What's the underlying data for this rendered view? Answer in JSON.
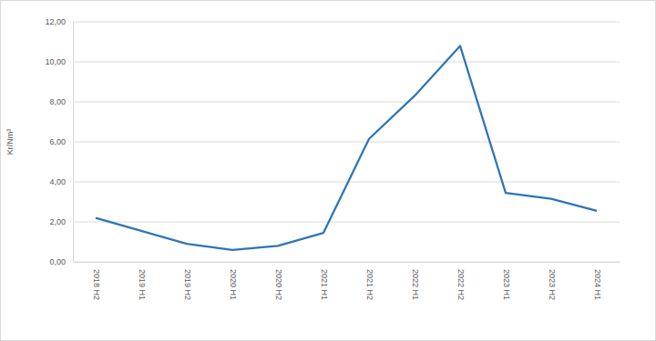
{
  "chart_data": {
    "type": "line",
    "y_label": "Kr/Nm³",
    "categories": [
      "2018 H2",
      "2019 H1",
      "2019 H2",
      "2020 H1",
      "2020 H2",
      "2021 H1",
      "2021 H2",
      "2022 H1",
      "2022 H2",
      "2023 H1",
      "2023 H2",
      "2024 H1"
    ],
    "values": [
      2.2,
      1.55,
      0.9,
      0.6,
      0.8,
      1.45,
      6.15,
      8.3,
      10.8,
      3.45,
      3.15,
      2.55
    ],
    "color": "#2e75b6",
    "ylim": [
      0,
      12
    ],
    "yticks": [
      {
        "value": 0,
        "label": "0,00"
      },
      {
        "value": 2,
        "label": "2,00"
      },
      {
        "value": 4,
        "label": "4,00"
      },
      {
        "value": 6,
        "label": "6,00"
      },
      {
        "value": 8,
        "label": "8,00"
      },
      {
        "value": 10,
        "label": "10,00"
      },
      {
        "value": 12,
        "label": "12,00"
      }
    ],
    "grid": true
  }
}
